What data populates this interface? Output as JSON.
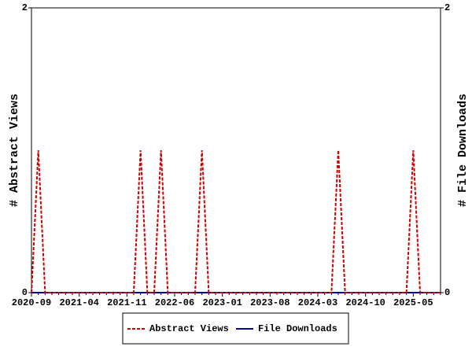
{
  "chart_data": {
    "type": "line",
    "categories": [
      "2020-09",
      null,
      null,
      null,
      null,
      null,
      null,
      "2021-04",
      null,
      null,
      null,
      null,
      null,
      null,
      "2021-11",
      null,
      null,
      null,
      null,
      null,
      null,
      "2022-06",
      null,
      null,
      null,
      null,
      null,
      null,
      "2023-01",
      null,
      null,
      null,
      null,
      null,
      null,
      "2023-08",
      null,
      null,
      null,
      null,
      null,
      null,
      "2024-03",
      null,
      null,
      null,
      null,
      null,
      null,
      "2024-10",
      null,
      null,
      null,
      null,
      null,
      null,
      "2025-05",
      null,
      null,
      null,
      null
    ],
    "y_label": "# Abstract Views",
    "y2_label": "# File Downloads",
    "ylim": [
      0,
      2
    ],
    "yticks": [
      0,
      2
    ],
    "y2lim": [
      0,
      2
    ],
    "y2ticks": [
      0,
      2
    ],
    "legend": "bottom",
    "series": [
      {
        "name": "Abstract Views",
        "color": "#cc0000",
        "dashed": true,
        "values": [
          0,
          1,
          0,
          0,
          0,
          0,
          0,
          0,
          0,
          0,
          0,
          0,
          0,
          0,
          0,
          0,
          1,
          0,
          0,
          1,
          0,
          0,
          0,
          0,
          0,
          1,
          0,
          0,
          0,
          0,
          0,
          0,
          0,
          0,
          0,
          0,
          0,
          0,
          0,
          0,
          0,
          0,
          0,
          0,
          0,
          1,
          0,
          0,
          0,
          0,
          0,
          0,
          0,
          0,
          0,
          0,
          1,
          0,
          0,
          0,
          0
        ]
      },
      {
        "name": "File Downloads",
        "color": "#000099",
        "dashed": false,
        "axis": "y2",
        "values": [
          0,
          0,
          0,
          0,
          0,
          0,
          0,
          0,
          0,
          0,
          0,
          0,
          0,
          0,
          0,
          0,
          0,
          0,
          0,
          0,
          0,
          0,
          0,
          0,
          0,
          0,
          0,
          0,
          0,
          0,
          0,
          0,
          0,
          0,
          0,
          0,
          0,
          0,
          0,
          0,
          0,
          0,
          0,
          0,
          0,
          0,
          0,
          0,
          0,
          0,
          0,
          0,
          0,
          0,
          0,
          0,
          0,
          0,
          0,
          0,
          0
        ]
      }
    ]
  }
}
